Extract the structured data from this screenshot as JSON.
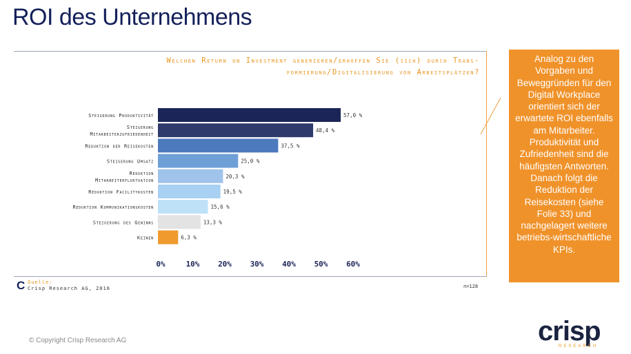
{
  "slide": {
    "title": "ROI des Unternehmens",
    "copyright": "© Copyright Crisp Research AG",
    "callout": "Analog zu den Vorgaben und Beweggründen für den Digital Workplace orientiert sich der erwartete ROI ebenfalls am Mitarbeiter. Produktivität und Zufriedenheit sind die häufigsten Antworten. Danach folgt die Reduktion der Reisekosten (siehe Folie 33) und nachgelagert weitere betriebs-wirtschaftliche KPIs.",
    "logo": {
      "word": "crisp",
      "sub": "RESEARCH"
    }
  },
  "source": {
    "label": "Quelle:",
    "text": "Crisp Research AG, 2016",
    "n": "n=128"
  },
  "chart_data": {
    "type": "bar",
    "orientation": "horizontal",
    "title_lines": [
      "Welchen Return on Investment generieren/erhoffen Sie (sich) durch Trans-",
      "formierung/Digitalisierung von Arbeitsplätzen?"
    ],
    "categories": [
      [
        "Steigerung Produktivität"
      ],
      [
        "Steigerung",
        "Mitarbeiterzufriedenheit"
      ],
      [
        "Reduktion der Reisekosten"
      ],
      [
        "Steigerung Umsatz"
      ],
      [
        "Reduktion",
        "Mitarbeiterfluktuation"
      ],
      [
        "Reduktion Facilitykosten"
      ],
      [
        "Reduktion Kommunikationskosten"
      ],
      [
        "Steigerung des Gewinns"
      ],
      [
        "Keinen"
      ]
    ],
    "values": [
      57.0,
      48.4,
      37.5,
      25.0,
      20.3,
      19.5,
      15.6,
      13.3,
      6.3
    ],
    "value_labels": [
      "57,0 %",
      "48,4 %",
      "37,5 %",
      "25,0 %",
      "20,3 %",
      "19,5 %",
      "15,6 %",
      "13,3 %",
      "6,3 %"
    ],
    "colors": [
      "#1b2557",
      "#2d3a6b",
      "#4d79bd",
      "#6f9fd7",
      "#9fc3ea",
      "#a8d0f2",
      "#bfe1f8",
      "#e3e3e3",
      "#f09a2e"
    ],
    "xlim": [
      0,
      60
    ],
    "xticks": [
      "0%",
      "10%",
      "20%",
      "30%",
      "40%",
      "50%",
      "60%"
    ],
    "grid": false,
    "legend": "none"
  }
}
